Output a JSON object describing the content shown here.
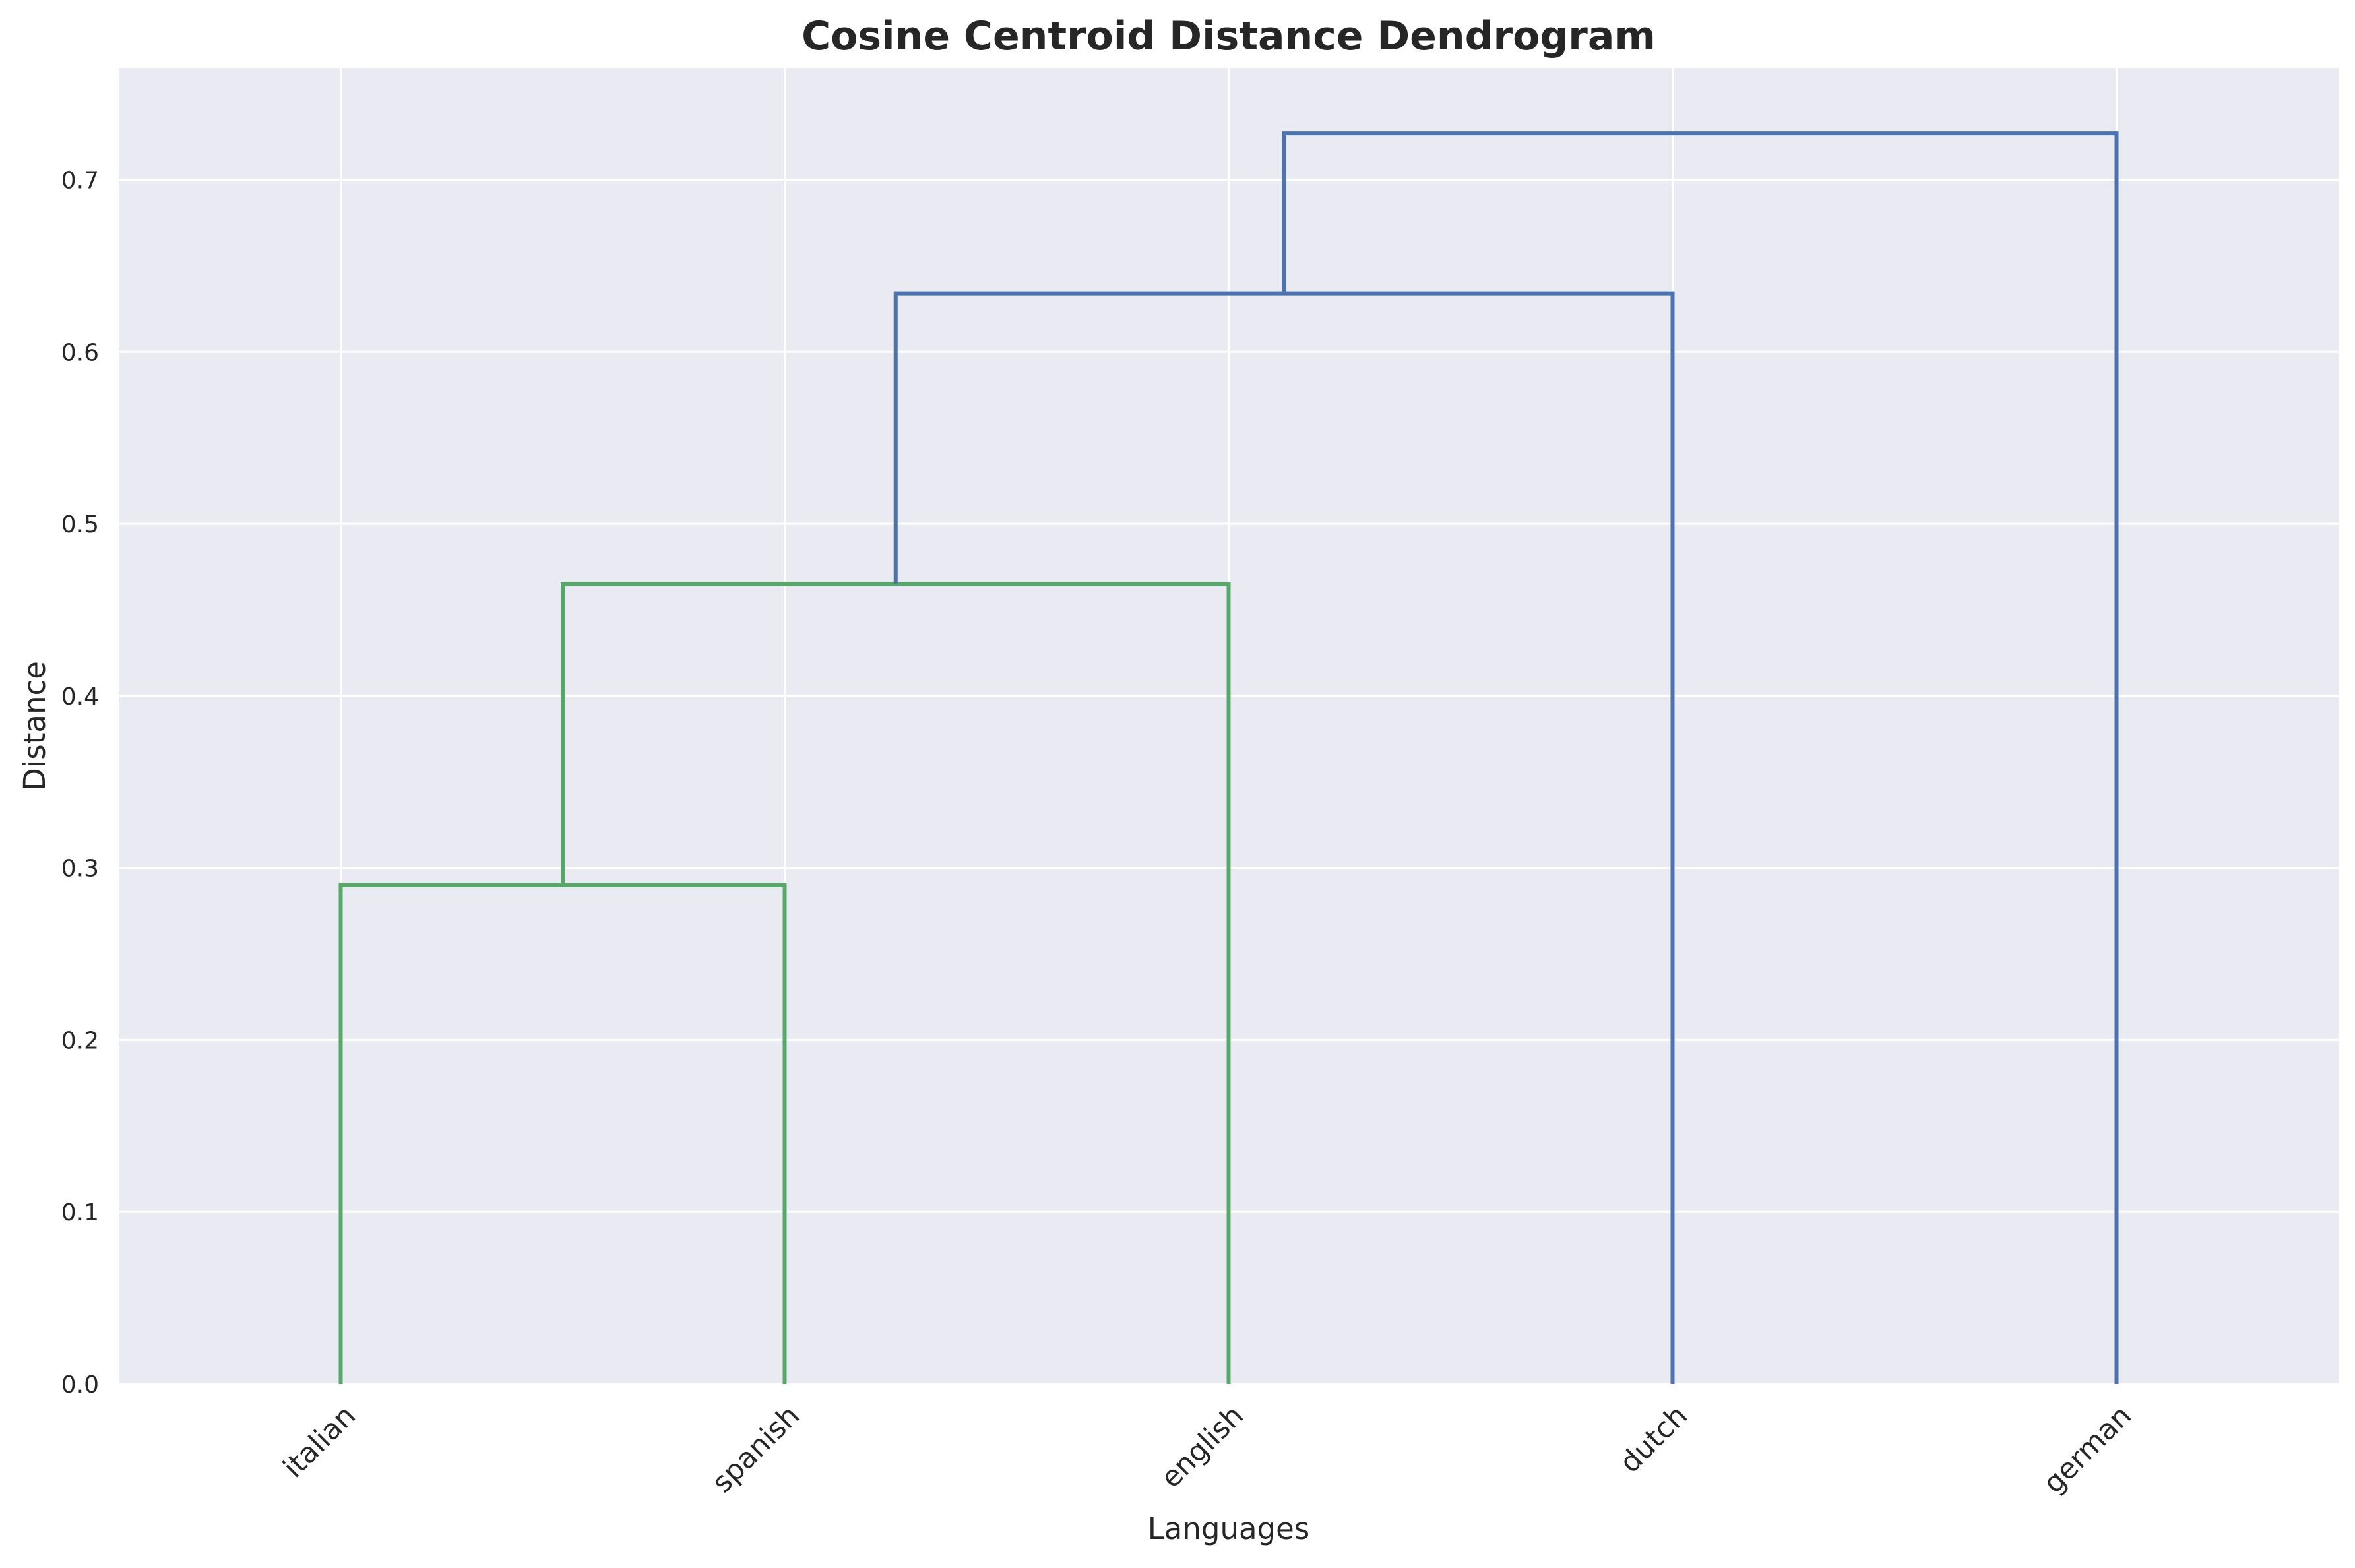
{
  "chart_data": {
    "type": "dendrogram",
    "title": "Cosine Centroid Distance Dendrogram",
    "xlabel": "Languages",
    "ylabel": "Distance",
    "ylim": [
      0,
      0.765
    ],
    "yticks": [
      "0.0",
      "0.1",
      "0.2",
      "0.3",
      "0.4",
      "0.5",
      "0.6",
      "0.7"
    ],
    "ytick_values": [
      0,
      0.1,
      0.2,
      0.3,
      0.4,
      0.5,
      0.6,
      0.7
    ],
    "leaves": [
      "italian",
      "spanish",
      "english",
      "dutch",
      "german"
    ],
    "grid": true,
    "links": [
      {
        "left": "italian",
        "right": "spanish",
        "height": 0.29,
        "color": "#55a868"
      },
      {
        "left": "italian+spanish",
        "right": "english",
        "height": 0.465,
        "color": "#55a868"
      },
      {
        "left": "italian+spanish+english",
        "right": "dutch",
        "height": 0.634,
        "color": "#4c72b0"
      },
      {
        "left": "italian+spanish+english+dutch",
        "right": "german",
        "height": 0.727,
        "color": "#4c72b0"
      }
    ],
    "colors": {
      "background": "#eaeaf2",
      "grid": "#ffffff",
      "cluster": "#55a868",
      "above_threshold": "#4c72b0"
    }
  }
}
